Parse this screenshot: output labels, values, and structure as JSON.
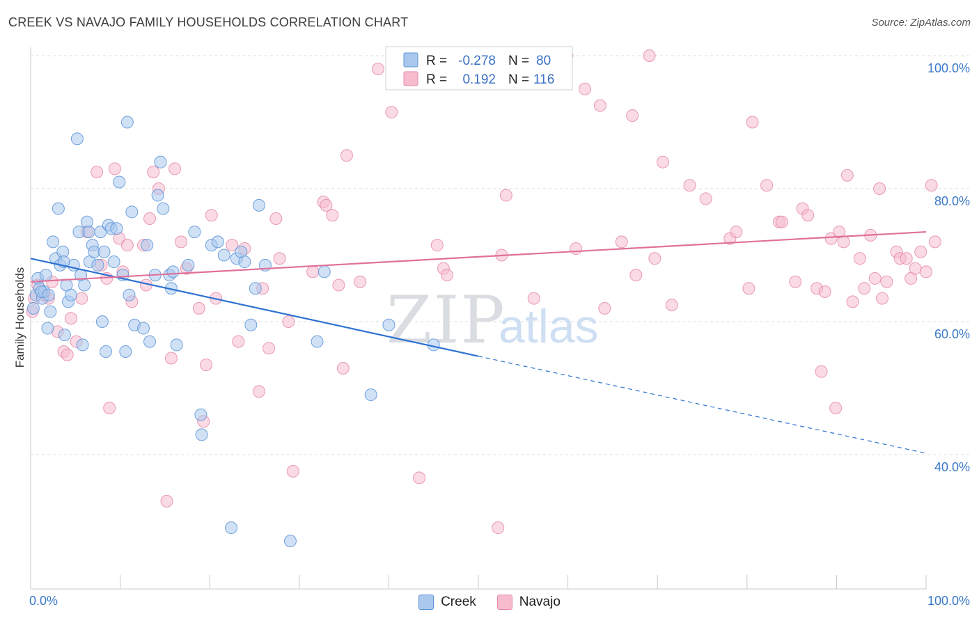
{
  "title": "CREEK VS NAVAJO FAMILY HOUSEHOLDS CORRELATION CHART",
  "source": "Source: ZipAtlas.com",
  "watermark": {
    "zip": "ZIP",
    "atlas": "atlas"
  },
  "legend": {
    "rows": [
      {
        "r_label": "R =",
        "r_value": "-0.278",
        "n_label": "N =",
        "n_value": "80"
      },
      {
        "r_label": "R =",
        "r_value": "0.192",
        "n_label": "N =",
        "n_value": "116"
      }
    ]
  },
  "bottom_legend": {
    "creek": "Creek",
    "navajo": "Navajo"
  },
  "colors": {
    "creek_fill": "#aac8ee",
    "creek_stroke": "#5b93d6",
    "creek_line": "#2e72d2",
    "navajo_fill": "#f6bccd",
    "navajo_stroke": "#e58aa8",
    "navajo_line": "#e0709a",
    "tick": "#3a78c9",
    "grid": "#dddddd"
  },
  "chart_data": {
    "type": "scatter",
    "title": "CREEK VS NAVAJO FAMILY HOUSEHOLDS CORRELATION CHART",
    "xlabel": "",
    "ylabel": "Family Households",
    "xlim": [
      0,
      100
    ],
    "ylim": [
      20,
      102
    ],
    "x_tick_labels": [
      "0.0%",
      "100.0%"
    ],
    "y_ticks": [
      40,
      60,
      80,
      100
    ],
    "y_tick_labels": [
      "40.0%",
      "60.0%",
      "80.0%",
      "100.0%"
    ],
    "grid": true,
    "legend_position": "top-center",
    "series": [
      {
        "name": "Creek",
        "r": -0.278,
        "n": 80,
        "trend": {
          "x0": 0,
          "y0": 69.5,
          "x1": 50,
          "y1": 54.8,
          "dashed_to_x": 100,
          "dashed_to_y": 40.2
        },
        "points": [
          [
            0.3,
            62.0
          ],
          [
            0.6,
            64.0
          ],
          [
            0.8,
            66.5
          ],
          [
            1.0,
            65.0
          ],
          [
            1.3,
            63.5
          ],
          [
            1.5,
            64.5
          ],
          [
            1.7,
            67.0
          ],
          [
            1.9,
            59.0
          ],
          [
            2.2,
            61.5
          ],
          [
            2.5,
            72.0
          ],
          [
            2.8,
            69.5
          ],
          [
            3.1,
            77.0
          ],
          [
            3.3,
            68.5
          ],
          [
            3.6,
            70.5
          ],
          [
            3.8,
            58.0
          ],
          [
            4.0,
            65.5
          ],
          [
            4.2,
            63.0
          ],
          [
            4.5,
            64.0
          ],
          [
            4.8,
            68.5
          ],
          [
            5.2,
            87.5
          ],
          [
            5.4,
            73.5
          ],
          [
            5.6,
            67.0
          ],
          [
            5.8,
            56.5
          ],
          [
            6.0,
            65.5
          ],
          [
            6.3,
            75.0
          ],
          [
            6.6,
            69.0
          ],
          [
            6.9,
            71.5
          ],
          [
            7.1,
            70.5
          ],
          [
            7.5,
            68.5
          ],
          [
            7.8,
            73.5
          ],
          [
            8.0,
            60.0
          ],
          [
            8.2,
            70.5
          ],
          [
            8.4,
            55.5
          ],
          [
            8.7,
            74.5
          ],
          [
            9.0,
            74.0
          ],
          [
            9.3,
            69.0
          ],
          [
            9.6,
            74.0
          ],
          [
            9.9,
            81.0
          ],
          [
            10.3,
            67.0
          ],
          [
            10.6,
            55.5
          ],
          [
            10.8,
            90.0
          ],
          [
            11.0,
            64.0
          ],
          [
            11.3,
            76.5
          ],
          [
            11.6,
            59.5
          ],
          [
            12.6,
            59.0
          ],
          [
            13.0,
            71.5
          ],
          [
            13.3,
            57.0
          ],
          [
            13.9,
            67.0
          ],
          [
            14.2,
            79.0
          ],
          [
            14.5,
            84.0
          ],
          [
            14.8,
            77.0
          ],
          [
            15.5,
            67.0
          ],
          [
            15.7,
            65.0
          ],
          [
            15.9,
            67.5
          ],
          [
            16.3,
            56.5
          ],
          [
            17.6,
            68.5
          ],
          [
            18.3,
            73.5
          ],
          [
            19.0,
            46.0
          ],
          [
            19.1,
            43.0
          ],
          [
            20.2,
            71.5
          ],
          [
            20.9,
            72.0
          ],
          [
            21.6,
            70.0
          ],
          [
            22.4,
            29.0
          ],
          [
            23.0,
            69.5
          ],
          [
            23.5,
            70.5
          ],
          [
            23.9,
            69.0
          ],
          [
            24.6,
            59.5
          ],
          [
            25.1,
            65.0
          ],
          [
            25.5,
            77.5
          ],
          [
            26.2,
            68.5
          ],
          [
            29.0,
            27.0
          ],
          [
            32.0,
            57.0
          ],
          [
            32.8,
            67.5
          ],
          [
            38.0,
            49.0
          ],
          [
            40.0,
            59.5
          ],
          [
            45.0,
            56.5
          ],
          [
            1.2,
            64.5
          ],
          [
            2.0,
            64.0
          ],
          [
            3.7,
            69.0
          ],
          [
            6.5,
            73.5
          ]
        ]
      },
      {
        "name": "Navajo",
        "r": 0.192,
        "n": 116,
        "trend": {
          "x0": 0,
          "y0": 66.0,
          "x1": 100,
          "y1": 73.5
        },
        "points": [
          [
            0.4,
            63.5
          ],
          [
            0.8,
            65.5
          ],
          [
            1.5,
            64.0
          ],
          [
            2.0,
            63.5
          ],
          [
            2.4,
            66.0
          ],
          [
            3.0,
            58.5
          ],
          [
            3.7,
            55.5
          ],
          [
            4.1,
            55.0
          ],
          [
            4.5,
            60.5
          ],
          [
            5.1,
            57.0
          ],
          [
            5.7,
            63.5
          ],
          [
            6.3,
            73.5
          ],
          [
            7.4,
            82.5
          ],
          [
            7.9,
            68.5
          ],
          [
            8.5,
            66.5
          ],
          [
            8.8,
            47.0
          ],
          [
            9.4,
            83.0
          ],
          [
            9.9,
            72.5
          ],
          [
            10.3,
            67.5
          ],
          [
            10.8,
            71.5
          ],
          [
            11.3,
            63.0
          ],
          [
            12.6,
            71.5
          ],
          [
            12.9,
            65.5
          ],
          [
            13.3,
            75.5
          ],
          [
            13.7,
            82.5
          ],
          [
            14.3,
            80.0
          ],
          [
            15.2,
            33.0
          ],
          [
            15.7,
            54.5
          ],
          [
            16.1,
            83.0
          ],
          [
            16.8,
            72.0
          ],
          [
            17.4,
            68.0
          ],
          [
            18.8,
            62.0
          ],
          [
            19.3,
            45.0
          ],
          [
            19.6,
            53.5
          ],
          [
            20.2,
            76.0
          ],
          [
            20.7,
            63.5
          ],
          [
            22.5,
            71.5
          ],
          [
            23.2,
            57.0
          ],
          [
            23.9,
            71.0
          ],
          [
            25.5,
            49.5
          ],
          [
            25.9,
            65.0
          ],
          [
            26.6,
            56.0
          ],
          [
            27.4,
            75.5
          ],
          [
            27.8,
            69.5
          ],
          [
            28.8,
            60.0
          ],
          [
            29.3,
            37.5
          ],
          [
            31.5,
            67.5
          ],
          [
            32.7,
            78.0
          ],
          [
            33.0,
            77.5
          ],
          [
            33.7,
            76.0
          ],
          [
            34.4,
            65.5
          ],
          [
            34.9,
            53.0
          ],
          [
            35.3,
            85.0
          ],
          [
            36.8,
            66.0
          ],
          [
            38.8,
            98.0
          ],
          [
            40.3,
            91.5
          ],
          [
            42.0,
            100.0
          ],
          [
            43.4,
            36.5
          ],
          [
            45.4,
            71.5
          ],
          [
            46.1,
            68.0
          ],
          [
            46.5,
            67.0
          ],
          [
            48.1,
            96.0
          ],
          [
            52.2,
            29.0
          ],
          [
            52.6,
            70.0
          ],
          [
            53.1,
            79.0
          ],
          [
            56.2,
            63.5
          ],
          [
            59.9,
            100.0
          ],
          [
            60.9,
            71.0
          ],
          [
            61.9,
            95.0
          ],
          [
            63.6,
            92.5
          ],
          [
            64.1,
            62.0
          ],
          [
            66.0,
            72.0
          ],
          [
            67.2,
            91.0
          ],
          [
            67.6,
            67.0
          ],
          [
            69.1,
            100.0
          ],
          [
            69.7,
            69.5
          ],
          [
            70.6,
            84.0
          ],
          [
            71.6,
            62.5
          ],
          [
            73.6,
            80.5
          ],
          [
            75.4,
            78.5
          ],
          [
            78.1,
            72.5
          ],
          [
            78.8,
            73.5
          ],
          [
            80.2,
            65.0
          ],
          [
            80.6,
            90.0
          ],
          [
            82.2,
            80.5
          ],
          [
            83.6,
            75.0
          ],
          [
            83.9,
            75.0
          ],
          [
            85.4,
            66.0
          ],
          [
            86.2,
            77.0
          ],
          [
            86.8,
            76.0
          ],
          [
            87.8,
            65.0
          ],
          [
            88.3,
            52.5
          ],
          [
            88.7,
            64.5
          ],
          [
            89.4,
            72.5
          ],
          [
            89.9,
            47.0
          ],
          [
            90.3,
            73.5
          ],
          [
            90.8,
            72.0
          ],
          [
            91.2,
            82.0
          ],
          [
            91.8,
            63.0
          ],
          [
            92.6,
            69.5
          ],
          [
            93.1,
            65.0
          ],
          [
            93.8,
            73.0
          ],
          [
            94.3,
            66.5
          ],
          [
            94.8,
            80.0
          ],
          [
            95.1,
            63.5
          ],
          [
            95.6,
            66.0
          ],
          [
            96.7,
            70.5
          ],
          [
            97.1,
            69.5
          ],
          [
            97.8,
            69.5
          ],
          [
            98.3,
            66.5
          ],
          [
            98.8,
            68.0
          ],
          [
            99.4,
            70.5
          ],
          [
            100.0,
            67.5
          ],
          [
            100.6,
            80.5
          ],
          [
            101.0,
            72.0
          ],
          [
            0.2,
            61.5
          ]
        ]
      }
    ]
  }
}
